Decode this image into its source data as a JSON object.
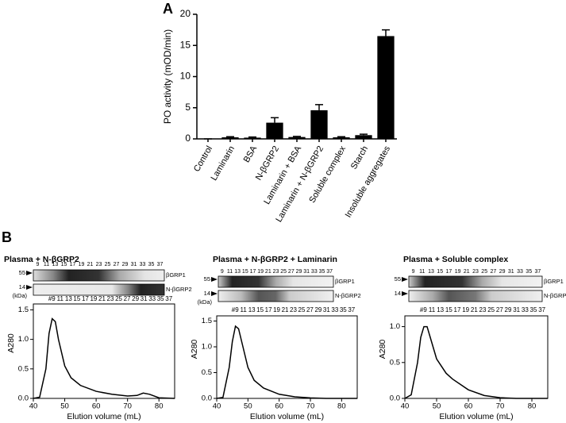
{
  "chart_data": [
    {
      "type": "bar",
      "panel": "A",
      "y_label": "PO activity (mOD/min)",
      "color": "#000000",
      "categories": [
        "Control",
        "Laminarin",
        "BSA",
        "N-βGRP2",
        "Laminarin + BSA",
        "Laminarin + N-βGRP2",
        "Soluble complex",
        "Starch",
        "Insoluble aggregates"
      ],
      "values": [
        0,
        0.25,
        0.2,
        2.6,
        0.3,
        4.6,
        0.25,
        0.6,
        16.5
      ],
      "errors": [
        0,
        0.1,
        0.1,
        0.8,
        0.1,
        0.9,
        0.1,
        0.15,
        1.0
      ],
      "ylim": [
        0,
        20
      ],
      "yticks": [
        0,
        5,
        10,
        15,
        20
      ]
    },
    {
      "type": "line",
      "panel": "B",
      "title": "Plasma + N-βGRP2",
      "fractions_top": [
        "9",
        "11",
        "13",
        "15",
        "17",
        "19",
        "21",
        "23",
        "25",
        "27",
        "29",
        "31",
        "33",
        "35",
        "37"
      ],
      "fractions_bottom": [
        "#9",
        "11",
        "13",
        "15",
        "17",
        "19",
        "21",
        "23",
        "25",
        "27",
        "29",
        "31",
        "33",
        "35",
        "37"
      ],
      "markers": [
        "55",
        "14"
      ],
      "marker_unit": "(kDa)",
      "bands": [
        "βGRP1",
        "N-βGRP2"
      ],
      "x_label": "Elution volume (mL)",
      "y_label": "A280",
      "x": [
        40,
        42,
        44,
        45,
        46,
        47,
        48,
        50,
        52,
        55,
        60,
        65,
        70,
        73,
        75,
        77,
        80,
        85
      ],
      "series": [
        {
          "color": "#000000",
          "values": [
            0,
            0.02,
            0.5,
            1.1,
            1.35,
            1.3,
            1.0,
            0.55,
            0.35,
            0.22,
            0.12,
            0.07,
            0.04,
            0.05,
            0.09,
            0.07,
            0.01,
            0
          ]
        }
      ],
      "xlim": [
        40,
        85
      ],
      "xticks": [
        40,
        50,
        60,
        70,
        80
      ],
      "ylim": [
        0,
        1.6
      ],
      "yticks": [
        {
          "value": 0,
          "label": "0.0"
        },
        0.5,
        {
          "value": 1,
          "label": "1.0"
        },
        1.5
      ]
    },
    {
      "type": "line",
      "title": "Plasma + N-βGRP2 + Laminarin",
      "fractions_top": [
        "9",
        "11",
        "13",
        "15",
        "17",
        "19",
        "21",
        "23",
        "25",
        "27",
        "29",
        "31",
        "33",
        "35",
        "37"
      ],
      "fractions_bottom": [
        "#9",
        "11",
        "13",
        "15",
        "17",
        "19",
        "21",
        "23",
        "25",
        "27",
        "29",
        "31",
        "33",
        "35",
        "37"
      ],
      "markers": [
        "55",
        "14"
      ],
      "marker_unit": "(kDa)",
      "bands": [
        "βGRP1",
        "N-βGRP2"
      ],
      "x_label": "Elution volume (mL)",
      "y_label": "A280",
      "x": [
        40,
        42,
        44,
        45,
        46,
        47,
        48,
        50,
        52,
        55,
        60,
        65,
        70,
        75,
        85
      ],
      "series": [
        {
          "color": "#000000",
          "values": [
            0,
            0.02,
            0.6,
            1.1,
            1.4,
            1.35,
            1.1,
            0.6,
            0.35,
            0.2,
            0.08,
            0.03,
            0.01,
            0,
            0
          ]
        }
      ],
      "xlim": [
        40,
        85
      ],
      "xticks": [
        40,
        50,
        60,
        70,
        80
      ],
      "ylim": [
        0,
        1.6
      ],
      "yticks": [
        {
          "value": 0,
          "label": "0.0"
        },
        0.5,
        {
          "value": 1,
          "label": "1.0"
        },
        1.5
      ]
    },
    {
      "type": "line",
      "title": "Plasma + Soluble complex",
      "fractions_top": [
        "9",
        "11",
        "13",
        "15",
        "17",
        "19",
        "21",
        "23",
        "25",
        "27",
        "29",
        "31",
        "33",
        "35",
        "37"
      ],
      "fractions_bottom": [
        "#9",
        "11",
        "13",
        "15",
        "17",
        "19",
        "21",
        "23",
        "25",
        "27",
        "29",
        "31",
        "33",
        "35",
        "37"
      ],
      "markers": [
        "55",
        "14"
      ],
      "bands": [
        "βGRP1",
        "N-βGRP2"
      ],
      "x_label": "Elution volume (mL)",
      "y_label": "A280",
      "x": [
        40,
        42,
        44,
        45,
        46,
        47,
        48,
        50,
        53,
        55,
        60,
        65,
        70,
        75,
        85
      ],
      "series": [
        {
          "color": "#000000",
          "values": [
            0,
            0.05,
            0.5,
            0.85,
            1.0,
            1.0,
            0.85,
            0.55,
            0.35,
            0.27,
            0.12,
            0.04,
            0.01,
            0,
            0
          ]
        }
      ],
      "xlim": [
        40,
        85
      ],
      "xticks": [
        40,
        50,
        60,
        70,
        80
      ],
      "ylim": [
        0,
        1.15
      ],
      "yticks": [
        {
          "value": 0,
          "label": "0.0"
        },
        0.5,
        {
          "value": 1,
          "label": "1.0"
        }
      ]
    }
  ]
}
